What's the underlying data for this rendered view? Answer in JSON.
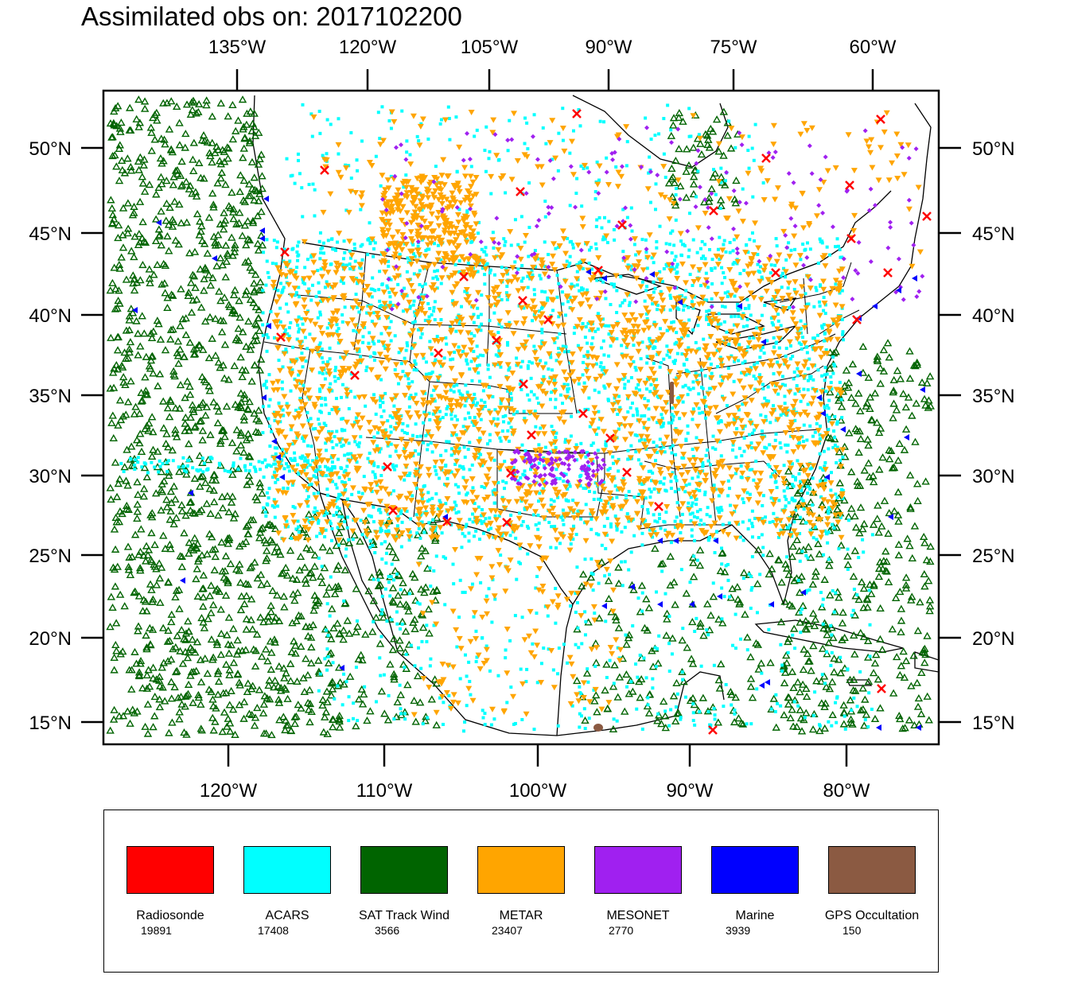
{
  "title": "Assimilated obs on: 2017102200",
  "axes": {
    "top_lon_labels": [
      "135°W",
      "120°W",
      "105°W",
      "90°W",
      "75°W",
      "60°W"
    ],
    "bottom_lon_labels": [
      "120°W",
      "110°W",
      "100°W",
      "90°W",
      "80°W"
    ],
    "lat_labels": [
      "15°N",
      "20°N",
      "25°N",
      "30°N",
      "35°N",
      "40°N",
      "45°N",
      "50°N"
    ]
  },
  "map": {
    "region": "CONUS and surrounding oceans",
    "projection": "Lambert conformal",
    "features": [
      "coastlines",
      "US state boundaries",
      "country borders"
    ]
  },
  "legend": {
    "items": [
      {
        "name": "Radiosonde",
        "count": "19891",
        "color": "#ff0000",
        "marker": "red x"
      },
      {
        "name": "ACARS",
        "count": "17408",
        "color": "#00ffff",
        "marker": "cyan square"
      },
      {
        "name": "SAT Track Wind",
        "count": "3566",
        "color": "#006400",
        "marker": "green open triangle"
      },
      {
        "name": "METAR",
        "count": "23407",
        "color": "#ffa500",
        "marker": "orange down triangle"
      },
      {
        "name": "MESONET",
        "count": "2770",
        "color": "#a020f0",
        "marker": "purple diamond"
      },
      {
        "name": "Marine",
        "count": "3939",
        "color": "#0000ff",
        "marker": "blue left triangle"
      },
      {
        "name": "GPS Occultation",
        "count": "150",
        "color": "#8b5a42",
        "marker": "brown blob"
      }
    ]
  }
}
